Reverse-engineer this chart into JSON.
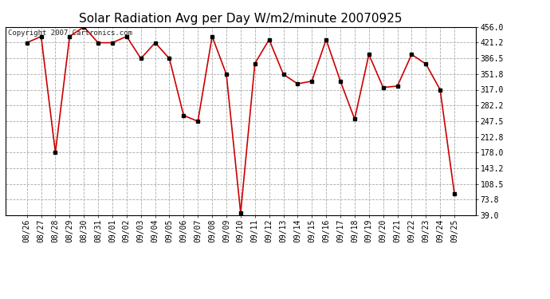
{
  "title": "Solar Radiation Avg per Day W/m2/minute 20070925",
  "copyright_text": "Copyright 2007 Cartronics.com",
  "dates": [
    "08/26",
    "08/27",
    "08/28",
    "08/29",
    "08/30",
    "08/31",
    "09/01",
    "09/02",
    "09/03",
    "09/04",
    "09/05",
    "09/06",
    "09/07",
    "09/08",
    "09/09",
    "09/10",
    "09/11",
    "09/12",
    "09/13",
    "09/14",
    "09/15",
    "09/16",
    "09/17",
    "09/18",
    "09/19",
    "09/20",
    "09/21",
    "09/22",
    "09/23",
    "09/24",
    "09/25"
  ],
  "values": [
    421,
    435,
    178,
    435,
    456,
    421,
    421,
    435,
    386,
    421,
    386,
    260,
    247,
    435,
    351,
    44,
    375,
    428,
    351,
    330,
    336,
    428,
    336,
    252,
    395,
    322,
    325,
    395,
    374,
    317,
    87
  ],
  "ylim": [
    39.0,
    456.0
  ],
  "yticks": [
    39.0,
    73.8,
    108.5,
    143.2,
    178.0,
    212.8,
    247.5,
    282.2,
    317.0,
    351.8,
    386.5,
    421.2,
    456.0
  ],
  "line_color": "#cc0000",
  "marker_color": "#000000",
  "bg_color": "#ffffff",
  "grid_color": "#aaaaaa",
  "title_fontsize": 11,
  "tick_fontsize": 7,
  "copyright_fontsize": 6.5
}
